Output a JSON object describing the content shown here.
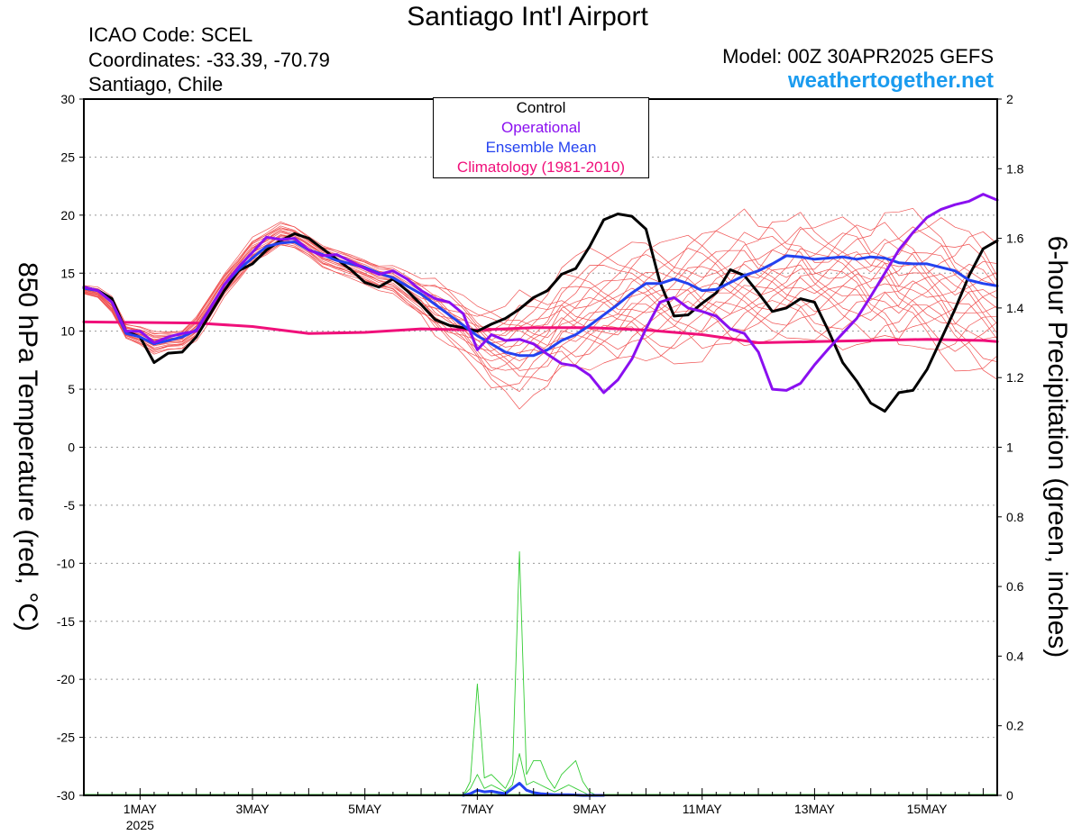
{
  "title": "Santiago Int'l Airport",
  "info": {
    "icao": "ICAO Code: SCEL",
    "coords": "Coordinates: -33.39, -70.79",
    "place": "Santiago, Chile",
    "model": "Model: 00Z 30APR2025 GEFS",
    "site": "weathertogether.net"
  },
  "colors": {
    "control": "#000000",
    "operational": "#8a0ff0",
    "ensemble_mean": "#2442f0",
    "climatology": "#f0107a",
    "members": "#f05050",
    "precip": "#33cc33",
    "site": "#1a9bef"
  },
  "chart_data": {
    "type": "line",
    "ylabel": "850 hPa Temperature (red, °C)",
    "y2label": "6-hour Precipitation (green, inches)",
    "ylim": [
      -30,
      30
    ],
    "yticks": [
      30,
      25,
      20,
      15,
      10,
      5,
      0,
      -5,
      -10,
      -15,
      -20,
      -25,
      -30
    ],
    "y2lim": [
      0,
      2
    ],
    "y2ticks": [
      "2",
      "1.8",
      "1.6",
      "1.4",
      "1.2",
      "1",
      "0.8",
      "0.6",
      "0.4",
      "0.2",
      "0"
    ],
    "x_unit": "days after 30APR2025 00Z",
    "xlim": [
      0,
      16.25
    ],
    "xticks": [
      {
        "x": 1,
        "label": "1MAY",
        "sub": "2025"
      },
      {
        "x": 3,
        "label": "3MAY",
        "sub": ""
      },
      {
        "x": 5,
        "label": "5MAY",
        "sub": ""
      },
      {
        "x": 7,
        "label": "7MAY",
        "sub": ""
      },
      {
        "x": 9,
        "label": "9MAY",
        "sub": ""
      },
      {
        "x": 11,
        "label": "11MAY",
        "sub": ""
      },
      {
        "x": 13,
        "label": "13MAY",
        "sub": ""
      },
      {
        "x": 15,
        "label": "15MAY",
        "sub": ""
      }
    ],
    "grid": "dotted horizontal",
    "legend_position": "top-center",
    "series": [
      {
        "name": "Control",
        "key": "control",
        "x": [
          0,
          0.25,
          0.5,
          0.75,
          1,
          1.25,
          1.5,
          1.75,
          2,
          2.25,
          2.5,
          2.75,
          3,
          3.25,
          3.5,
          3.75,
          4,
          4.25,
          4.5,
          4.75,
          5,
          5.25,
          5.5,
          5.75,
          6,
          6.25,
          6.5,
          6.75,
          7,
          7.25,
          7.5,
          7.75,
          8,
          8.25,
          8.5,
          8.75,
          9,
          9.25,
          9.5,
          9.75,
          10,
          10.25,
          10.5,
          10.75,
          11,
          11.25,
          11.5,
          11.75,
          12,
          12.25,
          12.5,
          12.75,
          13,
          13.25,
          13.5,
          13.75,
          14,
          14.25,
          14.5,
          14.75,
          15,
          15.25,
          15.5,
          15.75,
          16,
          16.25
        ],
        "y": [
          13.8,
          13.5,
          12.8,
          10,
          9.5,
          7.3,
          8.1,
          8.2,
          9.5,
          11.5,
          13.5,
          15.2,
          15.8,
          17,
          17.8,
          18.4,
          18,
          17.1,
          16.2,
          15.3,
          14.2,
          13.8,
          14.5,
          13.5,
          12.3,
          11,
          10.5,
          10.3,
          10,
          10.6,
          11.1,
          11.9,
          12.9,
          13.5,
          14.9,
          15.4,
          17.3,
          19.6,
          20.1,
          19.9,
          18.8,
          14.2,
          11.3,
          11.4,
          12.4,
          13.3,
          15.3,
          14.8,
          13.3,
          11.7,
          12,
          12.8,
          12.5,
          10,
          7.3,
          5.7,
          3.8,
          3.1,
          4.7,
          4.9,
          6.7,
          9.3,
          11.9,
          14.8,
          17.1,
          17.8
        ]
      },
      {
        "name": "Operational",
        "key": "operational",
        "x": [
          0,
          0.25,
          0.5,
          0.75,
          1,
          1.25,
          1.5,
          1.75,
          2,
          2.25,
          2.5,
          2.75,
          3,
          3.25,
          3.5,
          3.75,
          4,
          4.25,
          4.5,
          4.75,
          5,
          5.25,
          5.5,
          5.75,
          6,
          6.25,
          6.5,
          6.75,
          7,
          7.25,
          7.5,
          7.75,
          8,
          8.25,
          8.5,
          8.75,
          9,
          9.25,
          9.5,
          9.75,
          10,
          10.25,
          10.5,
          10.75,
          11,
          11.25,
          11.5,
          11.75,
          12,
          12.25,
          12.5,
          12.75,
          13,
          13.25,
          13.5,
          13.75,
          14,
          14.25,
          14.5,
          14.75,
          15,
          15.25,
          15.5,
          15.75,
          16,
          16.25
        ],
        "y": [
          13.8,
          13.5,
          12.5,
          10,
          10,
          9,
          9.5,
          9.8,
          10,
          12,
          14,
          15.5,
          16.8,
          18.1,
          17.9,
          18,
          17,
          16.5,
          16.6,
          16,
          15.4,
          14.9,
          15.2,
          14.5,
          13.5,
          12.8,
          12.5,
          11.5,
          8.4,
          9.7,
          9.2,
          9.3,
          8.9,
          8,
          7.2,
          7,
          6.2,
          4.7,
          5.8,
          7.6,
          10.2,
          12.5,
          12.9,
          12,
          11.7,
          11.3,
          10.2,
          9.8,
          8.2,
          5,
          4.9,
          5.5,
          7.1,
          8.5,
          9.8,
          11.1,
          13,
          15,
          17,
          18.5,
          19.8,
          20.5,
          20.9,
          21.2,
          21.8,
          21.3
        ]
      },
      {
        "name": "Ensemble Mean",
        "key": "ensemble_mean",
        "x": [
          0,
          0.25,
          0.5,
          0.75,
          1,
          1.25,
          1.5,
          1.75,
          2,
          2.25,
          2.5,
          2.75,
          3,
          3.25,
          3.5,
          3.75,
          4,
          4.25,
          4.5,
          4.75,
          5,
          5.25,
          5.5,
          5.75,
          6,
          6.25,
          6.5,
          6.75,
          7,
          7.25,
          7.5,
          7.75,
          8,
          8.25,
          8.5,
          8.75,
          9,
          9.25,
          9.5,
          9.75,
          10,
          10.25,
          10.5,
          10.75,
          11,
          11.25,
          11.5,
          11.75,
          12,
          12.25,
          12.5,
          12.75,
          13,
          13.25,
          13.5,
          13.75,
          14,
          14.25,
          14.5,
          14.75,
          15,
          15.25,
          15.5,
          15.75,
          16,
          16.25
        ],
        "y": [
          13.7,
          13.5,
          12.5,
          9.8,
          9.5,
          8.9,
          9.2,
          9.5,
          10.1,
          12,
          14,
          15.3,
          16.3,
          17.3,
          17.6,
          17.7,
          17,
          16.6,
          16.1,
          15.8,
          15.5,
          15,
          14.6,
          13.9,
          13.2,
          12.3,
          11.4,
          10.5,
          9.6,
          8.9,
          8.2,
          7.9,
          7.9,
          8.4,
          9.2,
          9.7,
          10.5,
          11.4,
          12.3,
          13.3,
          14.1,
          14.1,
          14.5,
          14.1,
          13.5,
          13.6,
          14.2,
          14.8,
          15.2,
          15.8,
          16.5,
          16.4,
          16.2,
          16.3,
          16.4,
          16.2,
          16.4,
          16.3,
          15.9,
          15.8,
          15.8,
          15.5,
          15.2,
          14.4,
          14.1,
          13.9
        ]
      },
      {
        "name": "Climatology (1981-2010)",
        "key": "climatology",
        "x": [
          0,
          1,
          2,
          3,
          4,
          5,
          6,
          7,
          8,
          9,
          10,
          11,
          12,
          13,
          14,
          15,
          16,
          16.25
        ],
        "y": [
          10.8,
          10.75,
          10.7,
          10.4,
          9.8,
          9.9,
          10.2,
          10.1,
          10.3,
          10.3,
          10.1,
          9.7,
          9,
          9.1,
          9.2,
          9.3,
          9.2,
          9.1
        ]
      }
    ],
    "members_envelope": {
      "x_start": 0,
      "x_step": 0.25,
      "count": 66
    },
    "members_low": [
      13.0,
      12.6,
      11.2,
      9.0,
      8.4,
      7.5,
      8.0,
      8.1,
      8.7,
      10.4,
      12.5,
      13.8,
      15.2,
      15.9,
      16.8,
      16.6,
      16.0,
      15.0,
      14.5,
      14.1,
      13.6,
      13.0,
      12.6,
      11.4,
      10.4,
      9.1,
      8.2,
      7.4,
      6.2,
      4.6,
      4.2,
      3.0,
      4.2,
      4.4,
      5.7,
      5.2,
      5.5,
      6.3,
      6.2,
      7.1,
      6.8,
      6.7,
      6.7,
      7.0,
      6.6,
      7.4,
      7.1,
      7.2,
      8.0,
      8.0,
      8.4,
      8.7,
      8.4,
      8.6,
      8.1,
      8.4,
      7.9,
      8.0,
      6.9,
      7.5,
      7.3,
      6.4,
      5.7,
      5.8,
      5.3,
      5.4
    ],
    "members_high": [
      14.1,
      14.0,
      13.3,
      10.9,
      10.8,
      10.5,
      10.4,
      10.5,
      11.9,
      13.8,
      15.5,
      17.0,
      18.6,
      19.2,
      19.9,
      19.5,
      18.6,
      17.9,
      17.6,
      17.2,
      16.8,
      16.3,
      16.3,
      15.8,
      15.2,
      14.8,
      14.1,
      13.4,
      12.6,
      12.7,
      12.9,
      14.7,
      14.4,
      14.9,
      16.3,
      16.8,
      17.5,
      17.4,
      17.6,
      18.3,
      18.8,
      18.8,
      19.0,
      19.9,
      20.2,
      20.1,
      20.1,
      20.8,
      19.6,
      20.4,
      20.1,
      21.2,
      20.3,
      20.4,
      21.2,
      21.1,
      20.1,
      21.1,
      20.6,
      21.0,
      20.3,
      20.6,
      19.8,
      20.2,
      19.9,
      18.7
    ],
    "precip": {
      "x": [
        6.75,
        6.875,
        7,
        7.125,
        7.25,
        7.375,
        7.5,
        7.625,
        7.75,
        7.875,
        8,
        8.125,
        8.25,
        8.375,
        8.5,
        8.625,
        8.75,
        8.875,
        9,
        9.125,
        9.25
      ],
      "members_max": [
        0,
        0.04,
        0.32,
        0.05,
        0.06,
        0.04,
        0.02,
        0.06,
        0.7,
        0.06,
        0.1,
        0.1,
        0.05,
        0.02,
        0.06,
        0.08,
        0.1,
        0.04,
        0.01,
        0,
        0
      ],
      "members_mid": [
        0,
        0.02,
        0.06,
        0.02,
        0.03,
        0.02,
        0.01,
        0.03,
        0.12,
        0.03,
        0.04,
        0.03,
        0.02,
        0.01,
        0.02,
        0.03,
        0.02,
        0.01,
        0,
        0,
        0
      ],
      "ensemble_mean": [
        0,
        0.005,
        0.015,
        0.01,
        0.012,
        0.008,
        0.005,
        0.02,
        0.035,
        0.015,
        0.008,
        0.005,
        0.003,
        0.002,
        0.002,
        0.002,
        0.001,
        0,
        0,
        0,
        0
      ]
    }
  },
  "legend": {
    "control": "Control",
    "operational": "Operational",
    "ensemble_mean": "Ensemble Mean",
    "climatology": "Climatology (1981-2010)"
  }
}
